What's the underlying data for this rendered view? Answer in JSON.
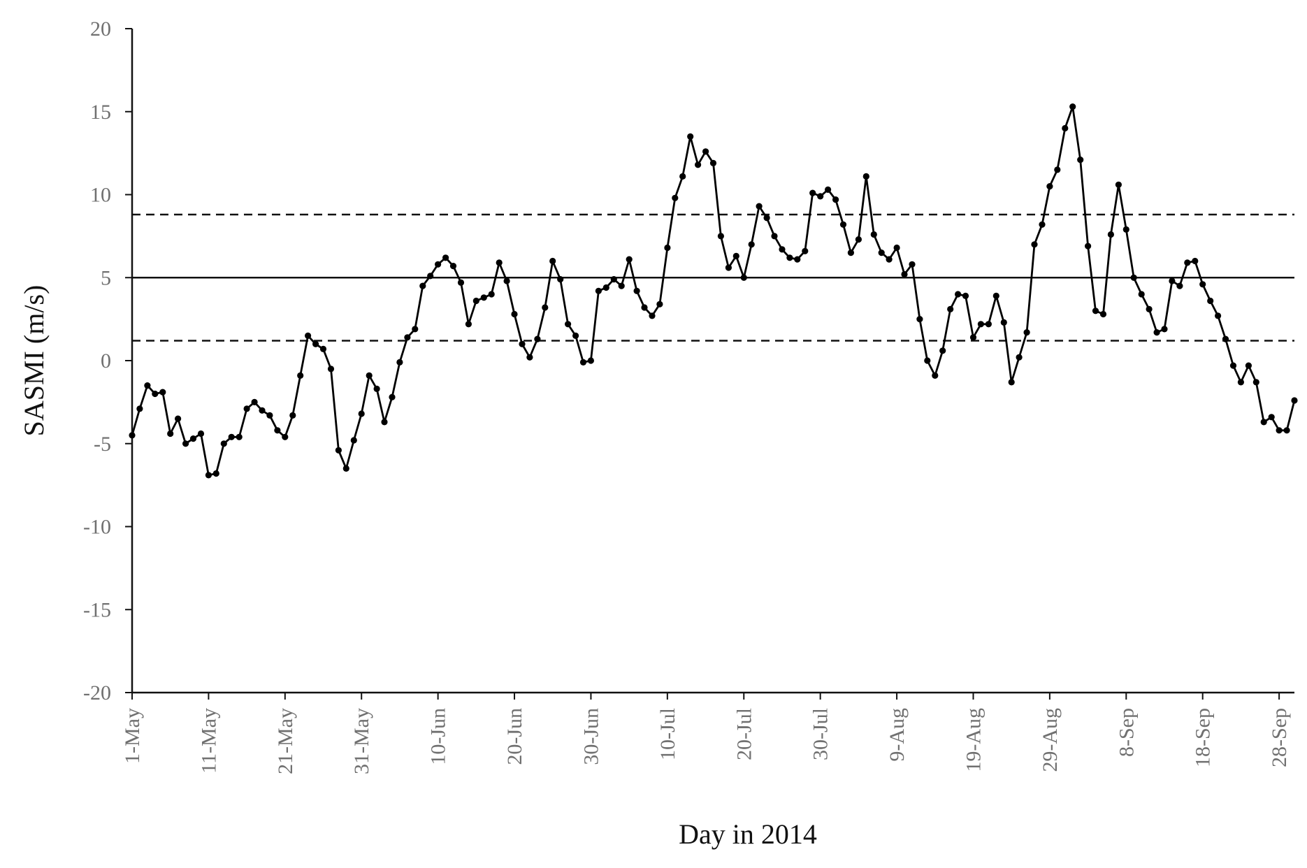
{
  "chart_data": {
    "type": "line",
    "xlabel": "Day in 2014",
    "ylabel": "SASMI (m/s)",
    "ylim": [
      -20,
      20
    ],
    "yticks": [
      20,
      15,
      10,
      5,
      0,
      -5,
      -10,
      -15,
      -20
    ],
    "xlim": [
      "2014-05-01",
      "2014-09-30"
    ],
    "xticks": [
      {
        "date": "2014-05-01",
        "label": "1-May"
      },
      {
        "date": "2014-05-11",
        "label": "11-May"
      },
      {
        "date": "2014-05-21",
        "label": "21-May"
      },
      {
        "date": "2014-05-31",
        "label": "31-May"
      },
      {
        "date": "2014-06-10",
        "label": "10-Jun"
      },
      {
        "date": "2014-06-20",
        "label": "20-Jun"
      },
      {
        "date": "2014-06-30",
        "label": "30-Jun"
      },
      {
        "date": "2014-07-10",
        "label": "10-Jul"
      },
      {
        "date": "2014-07-20",
        "label": "20-Jul"
      },
      {
        "date": "2014-07-30",
        "label": "30-Jul"
      },
      {
        "date": "2014-08-09",
        "label": "9-Aug"
      },
      {
        "date": "2014-08-19",
        "label": "19-Aug"
      },
      {
        "date": "2014-08-29",
        "label": "29-Aug"
      },
      {
        "date": "2014-09-08",
        "label": "8-Sep"
      },
      {
        "date": "2014-09-18",
        "label": "18-Sep"
      },
      {
        "date": "2014-09-28",
        "label": "28-Sep"
      }
    ],
    "grid": false,
    "reference_lines": [
      {
        "style": "dashed",
        "y": 8.8
      },
      {
        "style": "solid",
        "y": 5.0
      },
      {
        "style": "dashed",
        "y": 1.2
      }
    ],
    "series": [
      {
        "x_start": "2014-05-01",
        "x_step_days": 1,
        "values": [
          -4.5,
          -2.9,
          -1.5,
          -2.0,
          -1.9,
          -4.4,
          -3.5,
          -5.0,
          -4.7,
          -4.4,
          -6.9,
          -6.8,
          -5.0,
          -4.6,
          -4.6,
          -2.9,
          -2.5,
          -3.0,
          -3.3,
          -4.2,
          -4.6,
          -3.3,
          -0.9,
          1.5,
          1.0,
          0.7,
          -0.5,
          -5.4,
          -6.5,
          -4.8,
          -3.2,
          -0.9,
          -1.7,
          -3.7,
          -2.2,
          -0.1,
          1.4,
          1.9,
          4.5,
          5.1,
          5.8,
          6.2,
          5.7,
          4.7,
          2.2,
          3.6,
          3.8,
          4.0,
          5.9,
          4.8,
          2.8,
          1.0,
          0.2,
          1.3,
          3.2,
          6.0,
          4.9,
          2.2,
          1.5,
          -0.1,
          0.0,
          4.2,
          4.4,
          4.9,
          4.5,
          6.1,
          4.2,
          3.2,
          2.7,
          3.4,
          6.8,
          9.8,
          11.1,
          13.5,
          11.8,
          12.6,
          11.9,
          7.5,
          5.6,
          6.3,
          5.0,
          7.0,
          9.3,
          8.6,
          7.5,
          6.7,
          6.2,
          6.1,
          6.6,
          10.1,
          9.9,
          10.3,
          9.7,
          8.2,
          6.5,
          7.3,
          11.1,
          7.6,
          6.5,
          6.1,
          6.8,
          5.2,
          5.8,
          2.5,
          0.0,
          -0.9,
          0.6,
          3.1,
          4.0,
          3.9,
          1.4,
          2.2,
          2.2,
          3.9,
          2.3,
          -1.3,
          0.2,
          1.7,
          7.0,
          8.2,
          10.5,
          11.5,
          14.0,
          15.3,
          12.1,
          6.9,
          3.0,
          2.8,
          7.6,
          10.6,
          7.9,
          5.0,
          4.0,
          3.1,
          1.7,
          1.9,
          4.8,
          4.5,
          5.9,
          6.0,
          4.6,
          3.6,
          2.7,
          1.3,
          -0.3,
          -1.3,
          -0.3,
          -1.3,
          -3.7,
          -3.4,
          -4.2,
          -4.2,
          -2.4
        ]
      }
    ]
  }
}
